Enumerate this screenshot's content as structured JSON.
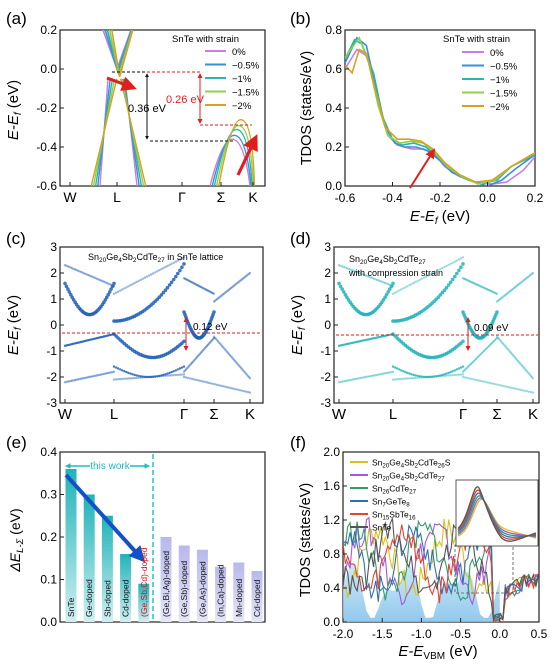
{
  "chart_data": [
    {
      "panel": "(a)",
      "type": "line",
      "legend_title": "SnTe with strain",
      "legend_entries": [
        "0%",
        "−0.5%",
        "−1%",
        "−1.5%",
        "−2%"
      ],
      "series_colors": [
        "#c77fe0",
        "#3a8fd6",
        "#2bb5b0",
        "#8fd14f",
        "#d9a21b"
      ],
      "ylabel": "E-E_f (eV)",
      "ylim": [
        -0.6,
        0.2
      ],
      "yticks": [
        "0.2",
        "0.0",
        "-0.2",
        "-0.4",
        "-0.6"
      ],
      "xticks": [
        "W",
        "L",
        "Γ",
        "Σ",
        "K"
      ],
      "annotations": [
        "0.36 eV",
        "0.26 eV"
      ],
      "band_shift_eV": {
        "L_cb_min": [
          0.0,
          -0.01,
          -0.02,
          -0.03,
          -0.04
        ],
        "Sigma_vb_max": [
          -0.36,
          -0.34,
          -0.31,
          -0.29,
          -0.26
        ]
      }
    },
    {
      "panel": "(b)",
      "type": "line",
      "legend_title": "SnTe with strain",
      "legend_entries": [
        "0%",
        "−0.5%",
        "−1%",
        "−1.5%",
        "−2%"
      ],
      "xlabel": "E-E_f (eV)",
      "ylabel": "TDOS (states/eV)",
      "xlim": [
        -0.6,
        0.2
      ],
      "ylim": [
        0,
        0.8
      ],
      "xticks": [
        "-0.6",
        "-0.4",
        "-0.2",
        "0.0",
        "0.2"
      ],
      "yticks": [
        "0.0",
        "0.2",
        "0.4",
        "0.6",
        "0.8"
      ],
      "series": [
        {
          "name": "0%",
          "x": [
            -0.6,
            -0.55,
            -0.5,
            -0.45,
            -0.42,
            -0.38,
            -0.32,
            -0.27,
            -0.22,
            -0.18,
            -0.12,
            -0.05,
            0.02,
            0.08,
            0.15,
            0.2
          ],
          "y": [
            0.6,
            0.7,
            0.66,
            0.4,
            0.26,
            0.21,
            0.19,
            0.19,
            0.16,
            0.1,
            0.05,
            0.02,
            0.01,
            0.02,
            0.08,
            0.15
          ]
        },
        {
          "name": "−0.5%",
          "x": [
            -0.6,
            -0.55,
            -0.51,
            -0.47,
            -0.43,
            -0.39,
            -0.35,
            -0.3,
            -0.25,
            -0.2,
            -0.15,
            -0.08,
            0.0,
            0.06,
            0.12,
            0.2
          ],
          "y": [
            0.63,
            0.76,
            0.72,
            0.5,
            0.3,
            0.22,
            0.2,
            0.2,
            0.18,
            0.13,
            0.07,
            0.03,
            0.0,
            0.03,
            0.09,
            0.16
          ]
        },
        {
          "name": "−1%",
          "x": [
            -0.6,
            -0.56,
            -0.53,
            -0.48,
            -0.44,
            -0.4,
            -0.36,
            -0.31,
            -0.26,
            -0.21,
            -0.16,
            -0.1,
            -0.03,
            0.04,
            0.1,
            0.2
          ],
          "y": [
            0.65,
            0.75,
            0.73,
            0.58,
            0.35,
            0.24,
            0.21,
            0.22,
            0.2,
            0.15,
            0.09,
            0.04,
            0.01,
            0.03,
            0.1,
            0.16
          ]
        },
        {
          "name": "−1.5%",
          "x": [
            -0.6,
            -0.57,
            -0.54,
            -0.5,
            -0.46,
            -0.42,
            -0.37,
            -0.32,
            -0.27,
            -0.22,
            -0.17,
            -0.11,
            -0.04,
            0.03,
            0.1,
            0.2
          ],
          "y": [
            0.66,
            0.71,
            0.76,
            0.63,
            0.41,
            0.26,
            0.22,
            0.23,
            0.22,
            0.17,
            0.1,
            0.05,
            0.01,
            0.03,
            0.1,
            0.17
          ]
        },
        {
          "name": "−2%",
          "x": [
            -0.6,
            -0.57,
            -0.54,
            -0.51,
            -0.47,
            -0.43,
            -0.38,
            -0.33,
            -0.28,
            -0.23,
            -0.18,
            -0.12,
            -0.05,
            0.02,
            0.1,
            0.2
          ],
          "y": [
            0.62,
            0.58,
            0.7,
            0.68,
            0.48,
            0.3,
            0.24,
            0.24,
            0.23,
            0.19,
            0.12,
            0.06,
            0.02,
            0.03,
            0.1,
            0.17
          ]
        }
      ]
    },
    {
      "panel": "(c)",
      "type": "scatter",
      "title_text": "Sn20Ge4Sb2CdTe27 in SnTe lattice",
      "ylabel": "E-E_f (eV)",
      "ylim": [
        -3,
        3
      ],
      "yticks": [
        "3",
        "2",
        "1",
        "0",
        "-1",
        "-2",
        "-3"
      ],
      "xticks": [
        "W",
        "L",
        "Γ",
        "Σ",
        "K"
      ],
      "annotation": "0.12 eV",
      "color": "#1f5fb8"
    },
    {
      "panel": "(d)",
      "type": "scatter",
      "title_text": "Sn20Ge4Sb2CdTe27",
      "subtitle_text": "with compression strain",
      "ylabel": "E-E_f (eV)",
      "ylim": [
        -3,
        3
      ],
      "yticks": [
        "3",
        "2",
        "1",
        "0",
        "-1",
        "-2",
        "-3"
      ],
      "xticks": [
        "W",
        "L",
        "Γ",
        "Σ",
        "K"
      ],
      "annotation": "0.09 eV",
      "color": "#1fb3b8"
    },
    {
      "panel": "(e)",
      "type": "bar",
      "ylabel": "ΔE_L-Σ (eV)",
      "ylim": [
        0,
        0.4
      ],
      "yticks": [
        "0.0",
        "0.1",
        "0.2",
        "0.3",
        "0.4"
      ],
      "this_work_label": "this work",
      "categories": [
        "SnTe",
        "Ge-doped",
        "Sb-doped",
        "Cd-doped",
        "(Ge,Sb,Cd)-doped",
        "(Ge,Bi,Ag)-doped",
        "(Ge,Sb)-doped",
        "(Ge,As)-doped",
        "(In,Ca)-doped",
        "Mn-doped",
        "Cd-doped"
      ],
      "values": [
        0.36,
        0.3,
        0.25,
        0.16,
        0.09,
        0.2,
        0.18,
        0.17,
        0.13,
        0.14,
        0.12
      ],
      "this_work_count": 5
    },
    {
      "panel": "(f)",
      "type": "line",
      "xlabel": "E-E_VBM (eV)",
      "ylabel": "TDOS (states/eV)",
      "xlim": [
        -2.0,
        0.5
      ],
      "ylim": [
        0,
        2.0
      ],
      "xticks": [
        "-2.0",
        "-1.5",
        "-1.0",
        "-0.5",
        "0.0",
        "0.5"
      ],
      "yticks": [
        "0.0",
        "0.4",
        "0.8",
        "1.2",
        "1.6",
        "2.0"
      ],
      "legend_entries": [
        "Sn20Ge4Sb2CdTe26S",
        "Sn20Ge4Sb2CdTe27",
        "Sn26CdTe27",
        "Sn7GeTe8",
        "Sn15SbTe16",
        "SnTe"
      ],
      "series_colors": [
        "#d9c21b",
        "#a35ad6",
        "#2e9f6a",
        "#2e6fb0",
        "#e0453a",
        "#555555"
      ]
    }
  ],
  "labels": {
    "a": "(a)",
    "b": "(b)",
    "c": "(c)",
    "d": "(d)",
    "e": "(e)",
    "f": "(f)",
    "ylabel_ab": "E-E",
    "sub_f": "f",
    "ylabel_ab_unit": " (eV)",
    "tdos": "TDOS (states/eV)",
    "xlabel_b": "E-E",
    "xlabel_b_unit": " (eV)",
    "delta": "ΔE",
    "delta_sub": "L-Σ",
    "delta_unit": " (eV)",
    "xlabel_f": "E-E",
    "xlabel_f_sub": "VBM",
    "xlabel_f_unit": " (eV)",
    "c_title_1": "Sn",
    "c_title_sub": [
      "20",
      "4",
      "2",
      "27"
    ],
    "c_title_mid": [
      "Ge",
      "Sb",
      "CdTe"
    ],
    "c_title_end": " in SnTe lattice",
    "d_title_end": "with compression strain"
  }
}
